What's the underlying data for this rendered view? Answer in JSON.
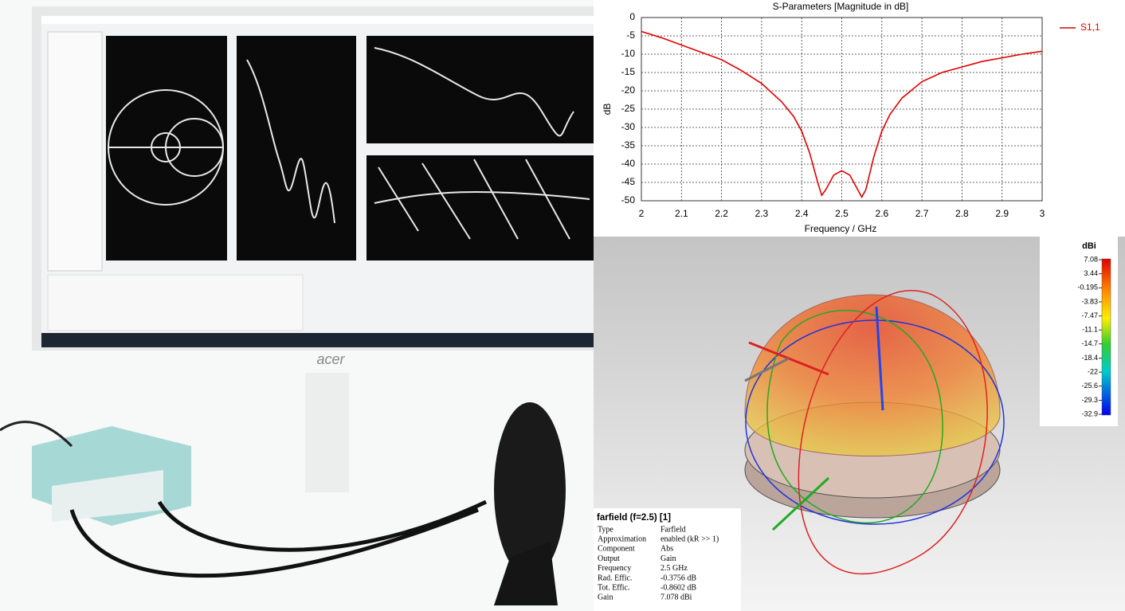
{
  "chart_data": {
    "type": "line",
    "title": "S-Parameters [Magnitude in dB]",
    "x_label": "Frequency / GHz",
    "y_label": "dB",
    "x": [
      2.0,
      2.05,
      2.1,
      2.15,
      2.2,
      2.25,
      2.3,
      2.35,
      2.38,
      2.4,
      2.42,
      2.44,
      2.45,
      2.46,
      2.48,
      2.5,
      2.52,
      2.54,
      2.55,
      2.56,
      2.58,
      2.6,
      2.62,
      2.65,
      2.7,
      2.75,
      2.8,
      2.85,
      2.9,
      2.95,
      3.0
    ],
    "series": [
      {
        "name": "S1,1",
        "color": "#e00000",
        "values": [
          -3.8,
          -5.5,
          -7.5,
          -9.5,
          -11.5,
          -14.5,
          -18,
          -23,
          -27,
          -31,
          -37,
          -45,
          -48.5,
          -47,
          -43,
          -41.8,
          -43,
          -47,
          -49,
          -47,
          -38,
          -31,
          -26.5,
          -22,
          -17.5,
          -15,
          -13.5,
          -12,
          -11,
          -10,
          -9.2
        ]
      }
    ],
    "xlim": [
      2,
      3
    ],
    "xticks": [
      2,
      2.1,
      2.2,
      2.3,
      2.4,
      2.5,
      2.6,
      2.7,
      2.8,
      2.9,
      3
    ],
    "ylim": [
      -50,
      0
    ],
    "yticks": [
      0,
      -5,
      -10,
      -15,
      -20,
      -25,
      -30,
      -35,
      -40,
      -45,
      -50
    ],
    "grid": true,
    "legend": "right"
  },
  "colorbar": {
    "title": "dBi",
    "ticks": [
      7.08,
      3.44,
      -0.195,
      -3.83,
      -7.47,
      -11.1,
      -14.7,
      -18.4,
      -22,
      -25.6,
      -29.3,
      -32.9
    ]
  },
  "info": {
    "title": "farfield (f=2.5) [1]",
    "rows": [
      [
        "Type",
        "Farfield"
      ],
      [
        "Approximation",
        "enabled (kR >> 1)"
      ],
      [
        "Component",
        "Abs"
      ],
      [
        "Output",
        "Gain"
      ],
      [
        "Frequency",
        "2.5 GHz"
      ],
      [
        "Rad. Effic.",
        "-0.3756 dB"
      ],
      [
        "Tot. Effic.",
        "-0.8602 dB"
      ],
      [
        "Gain",
        "7.078 dBi"
      ]
    ]
  },
  "photo": {
    "brand": "acer"
  }
}
